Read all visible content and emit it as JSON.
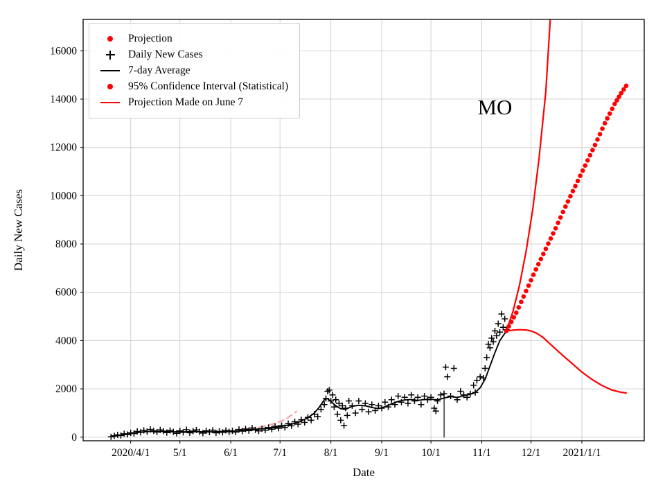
{
  "chart_data": {
    "type": "line",
    "title": "",
    "xlabel": "Date",
    "ylabel": "Daily New Cases",
    "annotation": {
      "text": "MO",
      "x_day": 313,
      "y_value": 13650
    },
    "x_unit": "days since 2020-01-01",
    "xlim": [
      62,
      404
    ],
    "ylim": [
      -150,
      17300
    ],
    "grid": true,
    "colors": {
      "projection": "#ff0000",
      "daily": "#000000",
      "average": "#000000",
      "confidence": "#ff0000",
      "june7_projection": "#f5a9a9",
      "grid": "#cccccc",
      "axes": "#000000"
    },
    "x_ticks": [
      {
        "day": 91,
        "label": "2020/4/1"
      },
      {
        "day": 121,
        "label": "5/1"
      },
      {
        "day": 152,
        "label": "6/1"
      },
      {
        "day": 182,
        "label": "7/1"
      },
      {
        "day": 213,
        "label": "8/1"
      },
      {
        "day": 244,
        "label": "9/1"
      },
      {
        "day": 274,
        "label": "10/1"
      },
      {
        "day": 305,
        "label": "11/1"
      },
      {
        "day": 335,
        "label": "12/1"
      },
      {
        "day": 366,
        "label": "2021/1/1"
      }
    ],
    "y_ticks": [
      0,
      2000,
      4000,
      6000,
      8000,
      10000,
      12000,
      14000,
      16000
    ],
    "legend": {
      "position": "upper-left",
      "items": [
        {
          "label": "Projection",
          "marker": "dot",
          "color": "#ff0000"
        },
        {
          "label": "Daily New Cases",
          "marker": "plus",
          "color": "#000000"
        },
        {
          "label": "7-day Average",
          "marker": "line",
          "color": "#000000"
        },
        {
          "label": "95% Confidence Interval (Statistical)",
          "marker": "dot",
          "color": "#ff0000"
        },
        {
          "label": "Projection Made on June 7",
          "marker": "line",
          "color": "#ff0000"
        }
      ]
    },
    "series": [
      {
        "name": "Projection Made on June 7",
        "type": "dashed-line",
        "color": "#f5a9a9",
        "width": 2.4,
        "points": [
          [
            158,
            290
          ],
          [
            165,
            360
          ],
          [
            172,
            450
          ],
          [
            179,
            570
          ],
          [
            185,
            720
          ],
          [
            192,
            1060
          ]
        ]
      },
      {
        "name": "Daily New Cases",
        "type": "scatter-plus",
        "color": "#000000",
        "points": [
          [
            79,
            15
          ],
          [
            81,
            55
          ],
          [
            83,
            95
          ],
          [
            85,
            70
          ],
          [
            87,
            140
          ],
          [
            89,
            110
          ],
          [
            91,
            180
          ],
          [
            93,
            150
          ],
          [
            95,
            240
          ],
          [
            97,
            200
          ],
          [
            99,
            280
          ],
          [
            101,
            230
          ],
          [
            103,
            320
          ],
          [
            105,
            260
          ],
          [
            107,
            210
          ],
          [
            109,
            300
          ],
          [
            111,
            250
          ],
          [
            113,
            190
          ],
          [
            115,
            280
          ],
          [
            117,
            220
          ],
          [
            119,
            160
          ],
          [
            121,
            260
          ],
          [
            123,
            200
          ],
          [
            125,
            310
          ],
          [
            127,
            180
          ],
          [
            129,
            250
          ],
          [
            131,
            300
          ],
          [
            133,
            220
          ],
          [
            135,
            170
          ],
          [
            137,
            260
          ],
          [
            139,
            210
          ],
          [
            141,
            290
          ],
          [
            143,
            180
          ],
          [
            145,
            240
          ],
          [
            147,
            200
          ],
          [
            149,
            280
          ],
          [
            151,
            220
          ],
          [
            153,
            260
          ],
          [
            155,
            210
          ],
          [
            157,
            320
          ],
          [
            159,
            250
          ],
          [
            161,
            340
          ],
          [
            163,
            270
          ],
          [
            165,
            380
          ],
          [
            167,
            300
          ],
          [
            169,
            260
          ],
          [
            171,
            350
          ],
          [
            173,
            290
          ],
          [
            175,
            400
          ],
          [
            177,
            330
          ],
          [
            179,
            450
          ],
          [
            181,
            370
          ],
          [
            183,
            480
          ],
          [
            185,
            400
          ],
          [
            187,
            560
          ],
          [
            189,
            470
          ],
          [
            191,
            640
          ],
          [
            193,
            540
          ],
          [
            195,
            720
          ],
          [
            197,
            610
          ],
          [
            199,
            820
          ],
          [
            201,
            700
          ],
          [
            203,
            950
          ],
          [
            205,
            850
          ],
          [
            207,
            1150
          ],
          [
            209,
            1350
          ],
          [
            210,
            1600
          ],
          [
            211,
            1900
          ],
          [
            212,
            1950
          ],
          [
            213,
            1500
          ],
          [
            214,
            1750
          ],
          [
            215,
            1250
          ],
          [
            216,
            1550
          ],
          [
            217,
            950
          ],
          [
            218,
            1400
          ],
          [
            219,
            700
          ],
          [
            220,
            1300
          ],
          [
            221,
            480
          ],
          [
            222,
            1200
          ],
          [
            223,
            900
          ],
          [
            224,
            1500
          ],
          [
            226,
            1300
          ],
          [
            228,
            1000
          ],
          [
            230,
            1500
          ],
          [
            232,
            1150
          ],
          [
            234,
            1400
          ],
          [
            236,
            1050
          ],
          [
            238,
            1350
          ],
          [
            240,
            1100
          ],
          [
            242,
            1300
          ],
          [
            244,
            1200
          ],
          [
            246,
            1450
          ],
          [
            248,
            1250
          ],
          [
            250,
            1550
          ],
          [
            252,
            1350
          ],
          [
            254,
            1700
          ],
          [
            256,
            1450
          ],
          [
            258,
            1650
          ],
          [
            260,
            1400
          ],
          [
            262,
            1750
          ],
          [
            264,
            1500
          ],
          [
            266,
            1650
          ],
          [
            268,
            1350
          ],
          [
            270,
            1700
          ],
          [
            272,
            1550
          ],
          [
            274,
            1650
          ],
          [
            276,
            1200
          ],
          [
            277,
            1080
          ],
          [
            278,
            1500
          ],
          [
            280,
            1750
          ],
          [
            282,
            1800
          ],
          [
            283,
            2900
          ],
          [
            284,
            2500
          ],
          [
            286,
            1700
          ],
          [
            288,
            2850
          ],
          [
            290,
            1550
          ],
          [
            292,
            1900
          ],
          [
            294,
            1750
          ],
          [
            296,
            1650
          ],
          [
            298,
            1800
          ],
          [
            300,
            2150
          ],
          [
            301,
            1850
          ],
          [
            302,
            2350
          ],
          [
            304,
            2500
          ],
          [
            306,
            2450
          ],
          [
            307,
            2850
          ],
          [
            308,
            3300
          ],
          [
            309,
            3850
          ],
          [
            310,
            3700
          ],
          [
            311,
            4100
          ],
          [
            312,
            3950
          ],
          [
            313,
            4400
          ],
          [
            314,
            4200
          ],
          [
            315,
            4700
          ],
          [
            316,
            4350
          ],
          [
            317,
            5100
          ],
          [
            318,
            4550
          ],
          [
            319,
            4900
          ],
          [
            320,
            4450
          ]
        ]
      },
      {
        "name": "anomaly-drop",
        "type": "line",
        "color": "#000000",
        "width": 1.2,
        "points": [
          [
            282,
            1800
          ],
          [
            282,
            0
          ]
        ]
      },
      {
        "name": "7-day Average",
        "type": "line",
        "color": "#000000",
        "width": 1.9,
        "points": [
          [
            79,
            25
          ],
          [
            85,
            80
          ],
          [
            91,
            150
          ],
          [
            97,
            210
          ],
          [
            103,
            240
          ],
          [
            110,
            235
          ],
          [
            116,
            225
          ],
          [
            121,
            215
          ],
          [
            128,
            230
          ],
          [
            134,
            225
          ],
          [
            140,
            220
          ],
          [
            146,
            225
          ],
          [
            152,
            235
          ],
          [
            158,
            270
          ],
          [
            164,
            310
          ],
          [
            170,
            340
          ],
          [
            176,
            380
          ],
          [
            182,
            430
          ],
          [
            188,
            520
          ],
          [
            194,
            640
          ],
          [
            199,
            800
          ],
          [
            203,
            1000
          ],
          [
            206,
            1250
          ],
          [
            209,
            1550
          ],
          [
            211,
            1600
          ],
          [
            213,
            1480
          ],
          [
            216,
            1300
          ],
          [
            219,
            1180
          ],
          [
            222,
            1150
          ],
          [
            226,
            1280
          ],
          [
            230,
            1320
          ],
          [
            234,
            1300
          ],
          [
            238,
            1230
          ],
          [
            242,
            1180
          ],
          [
            246,
            1260
          ],
          [
            250,
            1380
          ],
          [
            254,
            1480
          ],
          [
            258,
            1540
          ],
          [
            262,
            1560
          ],
          [
            266,
            1520
          ],
          [
            270,
            1560
          ],
          [
            274,
            1570
          ],
          [
            278,
            1540
          ],
          [
            282,
            1620
          ],
          [
            286,
            1680
          ],
          [
            290,
            1640
          ],
          [
            294,
            1720
          ],
          [
            298,
            1780
          ],
          [
            301,
            1850
          ],
          [
            304,
            2050
          ],
          [
            307,
            2400
          ],
          [
            310,
            2950
          ],
          [
            313,
            3500
          ],
          [
            316,
            4000
          ],
          [
            319,
            4300
          ],
          [
            321,
            4420
          ]
        ]
      },
      {
        "name": "95% CI Upper",
        "type": "line",
        "color": "#ff0000",
        "width": 2.2,
        "points": [
          [
            320,
            4400
          ],
          [
            324,
            5200
          ],
          [
            328,
            6300
          ],
          [
            332,
            7700
          ],
          [
            336,
            9400
          ],
          [
            340,
            11600
          ],
          [
            344,
            14300
          ],
          [
            347,
            17600
          ],
          [
            348,
            19200
          ]
        ]
      },
      {
        "name": "95% CI Lower",
        "type": "line",
        "color": "#ff0000",
        "width": 2.2,
        "points": [
          [
            320,
            4400
          ],
          [
            324,
            4430
          ],
          [
            328,
            4450
          ],
          [
            332,
            4440
          ],
          [
            335,
            4400
          ],
          [
            338,
            4320
          ],
          [
            342,
            4150
          ],
          [
            346,
            3900
          ],
          [
            350,
            3650
          ],
          [
            355,
            3350
          ],
          [
            360,
            3050
          ],
          [
            366,
            2700
          ],
          [
            372,
            2400
          ],
          [
            378,
            2150
          ],
          [
            384,
            1960
          ],
          [
            389,
            1870
          ],
          [
            393,
            1830
          ]
        ]
      },
      {
        "name": "Projection",
        "type": "dotted-line",
        "color": "#ff0000",
        "dot_radius": 3.3,
        "step": 1.5,
        "points": [
          [
            320,
            4400
          ],
          [
            326,
            5150
          ],
          [
            332,
            6050
          ],
          [
            338,
            6950
          ],
          [
            344,
            7800
          ],
          [
            350,
            8650
          ],
          [
            356,
            9550
          ],
          [
            362,
            10400
          ],
          [
            368,
            11250
          ],
          [
            374,
            12100
          ],
          [
            380,
            13000
          ],
          [
            386,
            13800
          ],
          [
            390,
            14250
          ],
          [
            393,
            14550
          ]
        ]
      }
    ]
  }
}
